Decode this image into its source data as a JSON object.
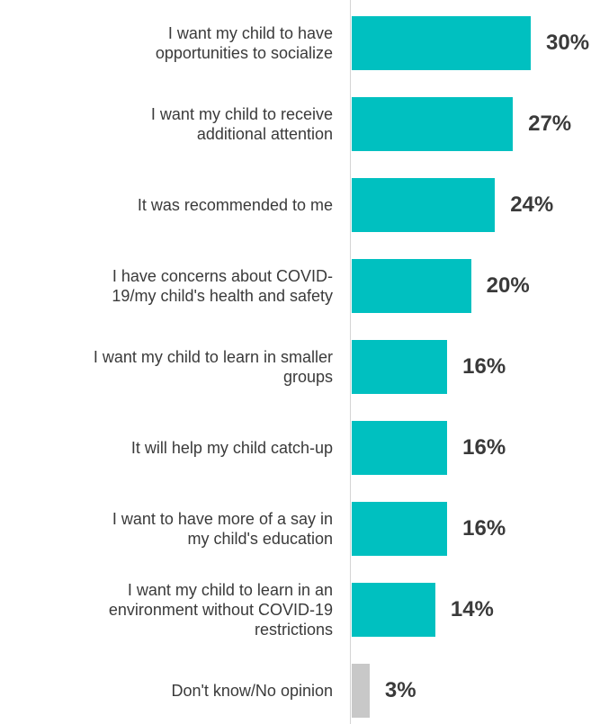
{
  "chart_data": {
    "type": "bar",
    "orientation": "horizontal",
    "categories": [
      "I want my child to have opportunities to socialize",
      "I want my child to receive additional attention",
      "It was recommended to me",
      "I have concerns about COVID-19/my child's health and safety",
      "I want my child to learn in smaller groups",
      "It will help my child catch-up",
      "I want to have more of a say in my child's education",
      "I want my child to learn in an environment without COVID-19 restrictions",
      "Don't know/No opinion"
    ],
    "label_lines": [
      [
        "I want my child to have",
        "opportunities to socialize"
      ],
      [
        "I want my child to receive",
        "additional attention"
      ],
      [
        "It was recommended to me"
      ],
      [
        "I have concerns about COVID-",
        "19/my child's health and safety"
      ],
      [
        "I want my child to learn in smaller",
        "groups"
      ],
      [
        "It will help my child catch-up"
      ],
      [
        "I want to have more of a say in",
        "my child's education"
      ],
      [
        "I want my child to learn in an",
        "environment without COVID-19",
        "restrictions"
      ],
      [
        "Don't know/No opinion"
      ]
    ],
    "values": [
      30,
      27,
      24,
      20,
      16,
      16,
      16,
      14,
      3
    ],
    "value_labels": [
      "30%",
      "27%",
      "24%",
      "20%",
      "16%",
      "16%",
      "16%",
      "14%",
      "3%"
    ],
    "bar_colors": [
      "#00c0c0",
      "#00c0c0",
      "#00c0c0",
      "#00c0c0",
      "#00c0c0",
      "#00c0c0",
      "#00c0c0",
      "#00c0c0",
      "#c8c8c8"
    ],
    "xlim": [
      0,
      30
    ],
    "title": "",
    "xlabel": "",
    "ylabel": "",
    "grid": false,
    "legend": "none"
  }
}
